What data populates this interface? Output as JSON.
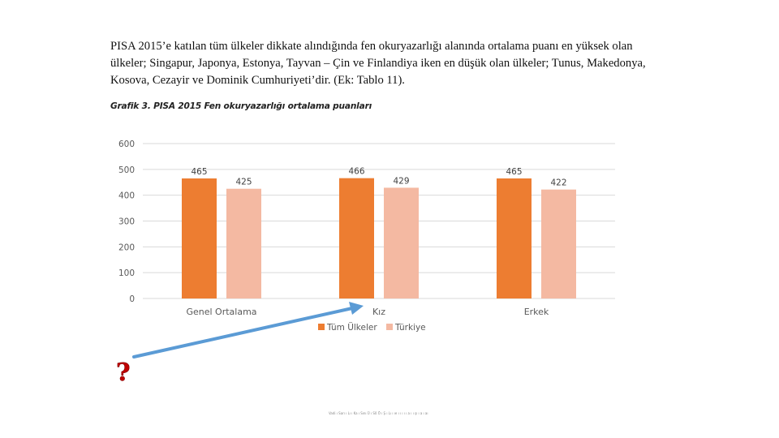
{
  "text": {
    "paragraph": "PISA 2015’e katılan tüm ülkeler dikkate alındığında fen okuryazarlığı alanında ortalama puanı en yüksek olan ülkeler; Singapur, Japonya, Estonya, Tayvan – Çin ve Finlandiya iken en düşük olan ülkeler; Tunus, Makedonya, Kosova, Cezayir ve Dominik Cumhuriyeti’dir. (Ek: Tablo 11).",
    "caption": "Grafik 3. PISA 2015 Fen okuryazarlığı ortalama puanları",
    "footer": "Vadi ı Sarı ı Lı ı Ka ı Sını Ü ı S0 Ö ı Ş ı Lı ı ıe ı ı ı ı ı a ı ı şı ı a ı aı"
  },
  "annotation": {
    "question_mark": "?",
    "arrow_color": "#5B9BD5",
    "question_color": "#C00000"
  },
  "chart_data": {
    "type": "bar",
    "categories": [
      "Genel Ortalama",
      "Kız",
      "Erkek"
    ],
    "series": [
      {
        "name": "Tüm Ülkeler",
        "values": [
          465,
          466,
          465
        ],
        "color": "#ED7D31"
      },
      {
        "name": "Türkiye",
        "values": [
          425,
          429,
          422
        ],
        "color": "#F4B9A2"
      }
    ],
    "yticks": [
      0,
      100,
      200,
      300,
      400,
      500,
      600
    ],
    "ylim": [
      0,
      600
    ],
    "grid": true,
    "legend": "bottom"
  }
}
